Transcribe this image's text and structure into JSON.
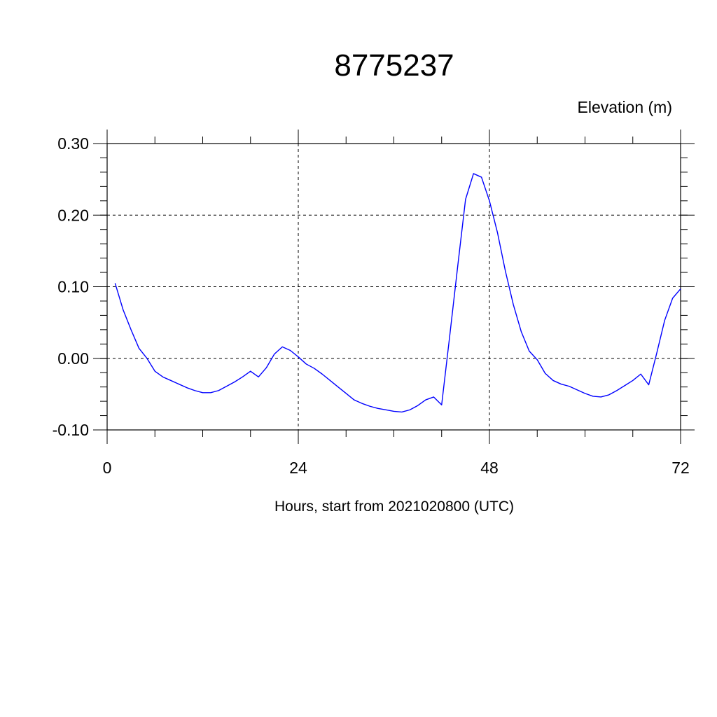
{
  "chart_data": {
    "type": "line",
    "title": "8775237",
    "ylabel": "Elevation (m)",
    "xlabel": "Hours, start from 2021020800 (UTC)",
    "xlim": [
      0,
      72
    ],
    "ylim": [
      -0.1,
      0.3
    ],
    "x_ticks": [
      0,
      24,
      48,
      72
    ],
    "x_tick_labels": [
      "0",
      "24",
      "48",
      "72"
    ],
    "y_ticks": [
      -0.1,
      0.0,
      0.1,
      0.2,
      0.3
    ],
    "y_tick_labels": [
      "-0.10",
      "0.00",
      "0.10",
      "0.20",
      "0.30"
    ],
    "grid": true,
    "line_color": "#0000ff",
    "series": [
      {
        "x": [
          1,
          2,
          3,
          4,
          5,
          6,
          7,
          8,
          9,
          10,
          11,
          12,
          13,
          14,
          15,
          16,
          17,
          18,
          19,
          20,
          21,
          22,
          23,
          24,
          25,
          26,
          27,
          28,
          29,
          30,
          31,
          32,
          33,
          34,
          35,
          36,
          37,
          38,
          39,
          40,
          41,
          42,
          43,
          44,
          45,
          46,
          47,
          48,
          49,
          50,
          51,
          52,
          53,
          54,
          55,
          56,
          57,
          58,
          59,
          60,
          61,
          62,
          63,
          64,
          65,
          66,
          67,
          68,
          69,
          70,
          71,
          72
        ],
        "values": [
          0.105,
          0.068,
          0.04,
          0.014,
          0.0,
          -0.018,
          -0.026,
          -0.031,
          -0.036,
          -0.041,
          -0.045,
          -0.048,
          -0.048,
          -0.045,
          -0.039,
          -0.033,
          -0.026,
          -0.018,
          -0.026,
          -0.013,
          0.006,
          0.016,
          0.011,
          0.002,
          -0.008,
          -0.014,
          -0.022,
          -0.031,
          -0.04,
          -0.049,
          -0.058,
          -0.063,
          -0.067,
          -0.07,
          -0.072,
          -0.074,
          -0.075,
          -0.072,
          -0.066,
          -0.058,
          -0.054,
          -0.065,
          0.03,
          0.127,
          0.222,
          0.258,
          0.253,
          0.22,
          0.176,
          0.122,
          0.075,
          0.037,
          0.01,
          -0.002,
          -0.021,
          -0.031,
          -0.036,
          -0.039,
          -0.044,
          -0.049,
          -0.053,
          -0.054,
          -0.051,
          -0.045,
          -0.038,
          -0.031,
          -0.022,
          -0.037,
          0.007,
          0.053,
          0.084,
          0.097
        ]
      }
    ]
  }
}
